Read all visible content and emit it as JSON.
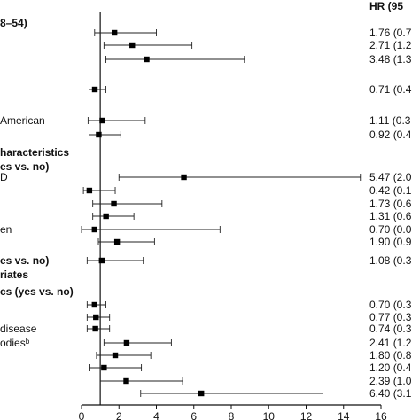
{
  "chart_data": {
    "type": "forest",
    "hr_header": "HR (95",
    "xlim": [
      0,
      16
    ],
    "xticks": [
      0,
      2,
      4,
      6,
      8,
      10,
      12,
      14,
      16
    ],
    "reference_line": 1,
    "text_rows": [
      {
        "text": "8–54)",
        "bold": true
      },
      {
        "text": "American",
        "bold": false
      },
      {
        "text": "haracteristics",
        "bold": true
      },
      {
        "text": "es vs. no)",
        "bold": true
      },
      {
        "text": "D",
        "bold": false
      },
      {
        "text": "en",
        "bold": false
      },
      {
        "text": "es vs. no)",
        "bold": true
      },
      {
        "text": "riates",
        "bold": true
      },
      {
        "text": "cs (yes vs. no)",
        "bold": true
      },
      {
        "text": "disease",
        "bold": false
      },
      {
        "text": "odiesᵇ",
        "bold": false
      }
    ],
    "rows": [
      {
        "hr": 1.76,
        "lo": 0.7,
        "hi": 4.0,
        "text": "1.76 (0.7"
      },
      {
        "hr": 2.71,
        "lo": 1.2,
        "hi": 5.9,
        "text": "2.71 (1.2"
      },
      {
        "hr": 3.48,
        "lo": 1.3,
        "hi": 8.7,
        "text": "3.48 (1.3"
      },
      {
        "hr": 0.71,
        "lo": 0.4,
        "hi": 1.3,
        "text": "0.71 (0.4"
      },
      {
        "hr": 1.11,
        "lo": 0.35,
        "hi": 3.4,
        "text": "1.11 (0.3"
      },
      {
        "hr": 0.92,
        "lo": 0.4,
        "hi": 2.1,
        "text": "0.92 (0.4"
      },
      {
        "hr": 5.47,
        "lo": 2.0,
        "hi": 14.9,
        "text": "5.47 (2.0"
      },
      {
        "hr": 0.42,
        "lo": 0.1,
        "hi": 1.8,
        "text": "0.42 (0.1"
      },
      {
        "hr": 1.73,
        "lo": 0.6,
        "hi": 4.3,
        "text": "1.73 (0.6"
      },
      {
        "hr": 1.31,
        "lo": 0.6,
        "hi": 2.8,
        "text": "1.31 (0.6"
      },
      {
        "hr": 0.7,
        "lo": 0.0,
        "hi": 7.4,
        "text": "0.70 (0.0"
      },
      {
        "hr": 1.9,
        "lo": 0.9,
        "hi": 3.9,
        "text": "1.90 (0.9"
      },
      {
        "hr": 1.08,
        "lo": 0.3,
        "hi": 3.3,
        "text": "1.08 (0.3"
      },
      {
        "hr": 0.7,
        "lo": 0.3,
        "hi": 1.3,
        "text": "0.70 (0.3"
      },
      {
        "hr": 0.77,
        "lo": 0.3,
        "hi": 1.5,
        "text": "0.77 (0.3"
      },
      {
        "hr": 0.74,
        "lo": 0.3,
        "hi": 1.5,
        "text": "0.74 (0.3"
      },
      {
        "hr": 2.41,
        "lo": 1.2,
        "hi": 4.8,
        "text": "2.41 (1.2"
      },
      {
        "hr": 1.8,
        "lo": 0.8,
        "hi": 3.7,
        "text": "1.80 (0.8"
      },
      {
        "hr": 1.2,
        "lo": 0.45,
        "hi": 3.2,
        "text": "1.20 (0.4"
      },
      {
        "hr": 2.39,
        "lo": 1.0,
        "hi": 5.4,
        "text": "2.39 (1.0"
      },
      {
        "hr": 6.4,
        "lo": 3.16,
        "hi": 12.9,
        "text": "6.40 (3.1"
      }
    ]
  }
}
